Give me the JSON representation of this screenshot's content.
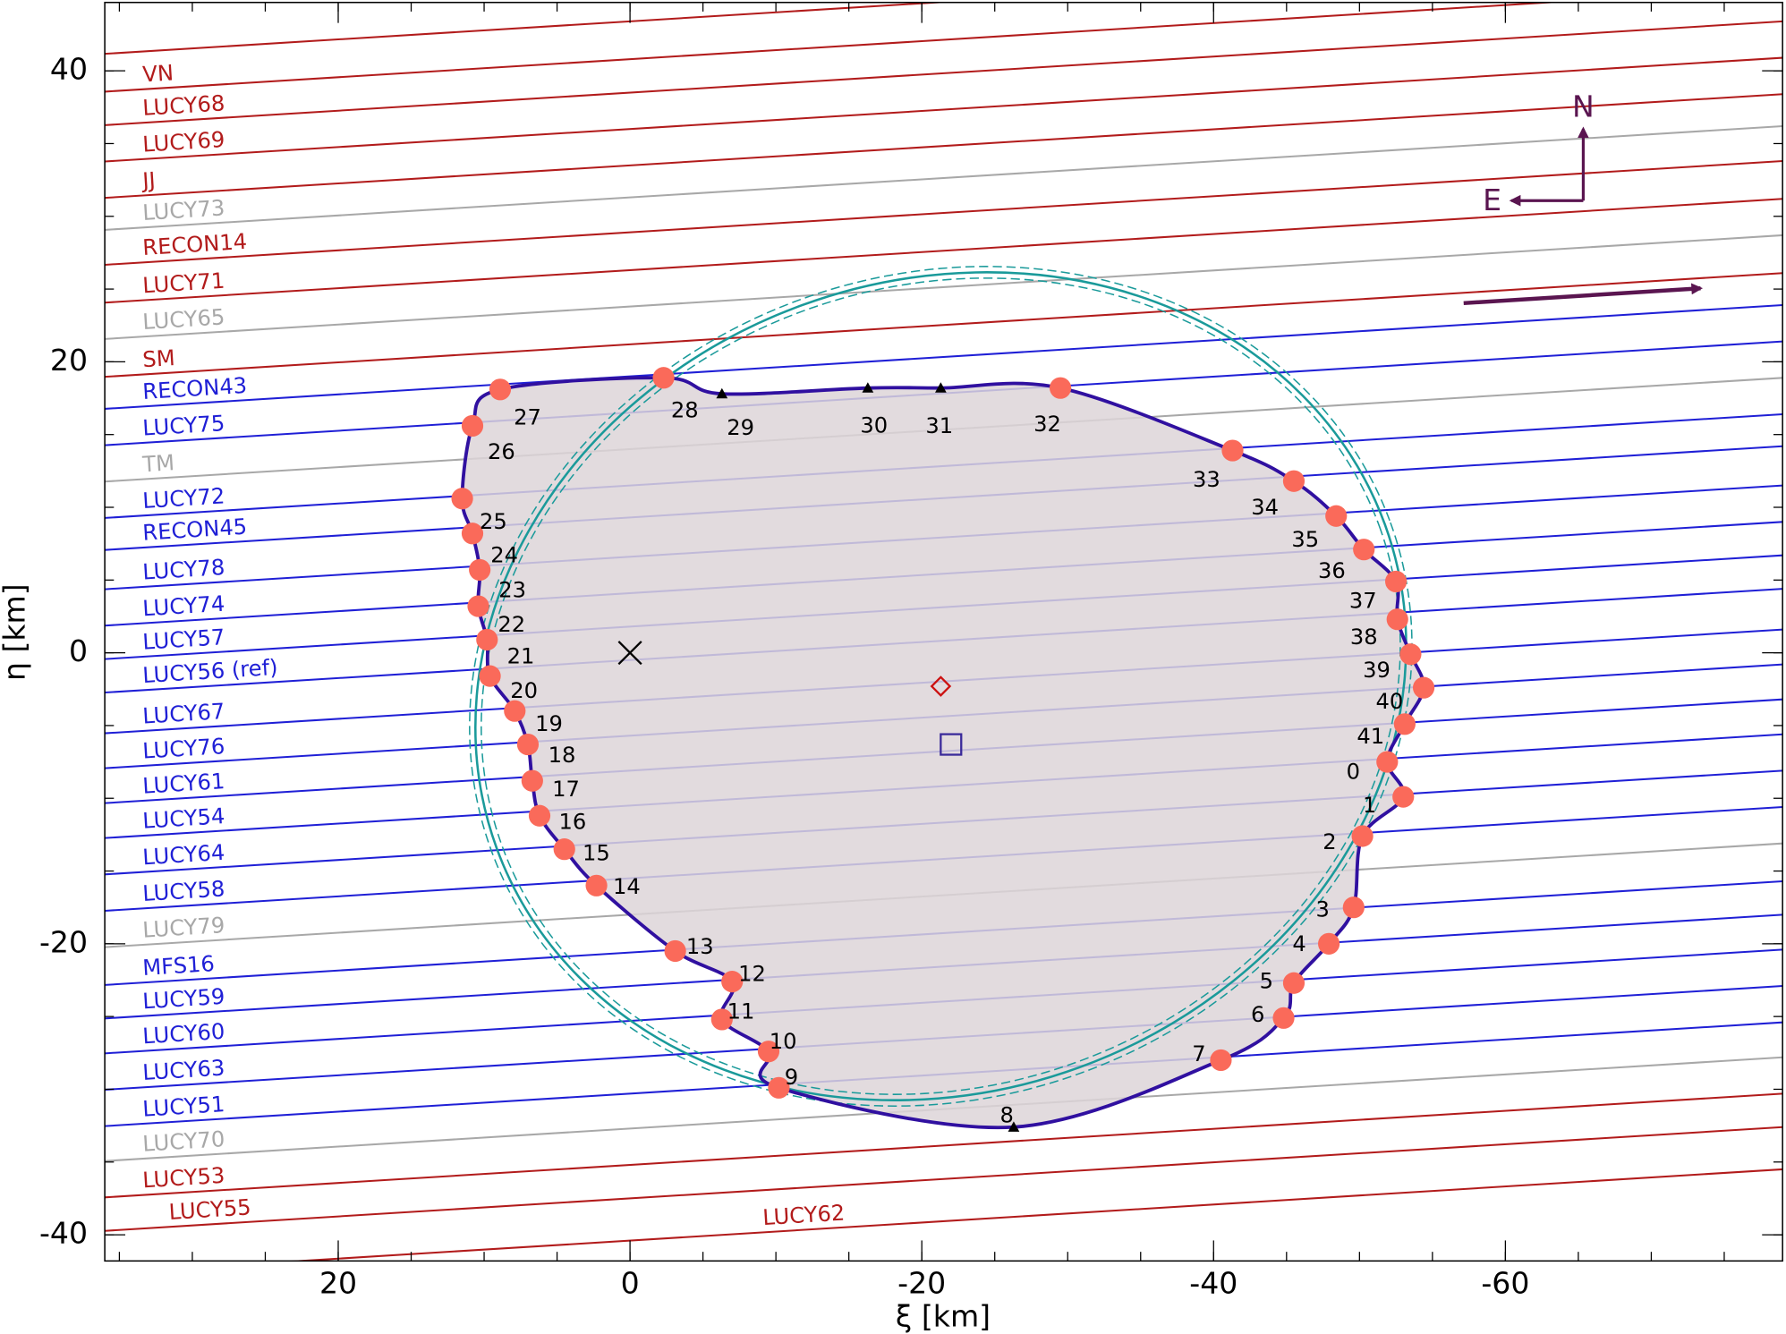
{
  "chart_data": {
    "type": "occultation",
    "xlabel": "ξ [km]",
    "ylabel": "η [km]",
    "xlim": [
      36,
      -79
    ],
    "ylim": [
      -41.8,
      44.7
    ],
    "xticks": [
      20,
      0,
      -20,
      -40,
      -60
    ],
    "yticks": [
      -40,
      -20,
      0,
      20,
      40
    ],
    "minor_step": 5,
    "chord_slope": 0.062,
    "chords": [
      {
        "name": null,
        "color": "#b21b1b",
        "offset": 43.4
      },
      {
        "name": "VN",
        "color": "#b21b1b",
        "offset": 40.8
      },
      {
        "name": "LUCY68",
        "color": "#b21b1b",
        "offset": 38.5
      },
      {
        "name": "LUCY69",
        "color": "#b21b1b",
        "offset": 36.0
      },
      {
        "name": "JJ",
        "color": "#b21b1b",
        "offset": 33.5
      },
      {
        "name": "LUCY73",
        "color": "#a8a8a8",
        "offset": 31.3
      },
      {
        "name": "RECON14",
        "color": "#b21b1b",
        "offset": 28.9
      },
      {
        "name": "LUCY71",
        "color": "#b21b1b",
        "offset": 26.3
      },
      {
        "name": "LUCY65",
        "color": "#a8a8a8",
        "offset": 23.8
      },
      {
        "name": "SM",
        "color": "#b21b1b",
        "offset": 21.2
      },
      {
        "name": "RECON43",
        "color": "#1f1fd6",
        "offset": 19.0
      },
      {
        "name": "LUCY75",
        "color": "#1f1fd6",
        "offset": 16.5
      },
      {
        "name": "TM",
        "color": "#a8a8a8",
        "offset": 14.0
      },
      {
        "name": "LUCY72",
        "color": "#1f1fd6",
        "offset": 11.5
      },
      {
        "name": "RECON45",
        "color": "#1f1fd6",
        "offset": 9.3
      },
      {
        "name": "LUCY78",
        "color": "#1f1fd6",
        "offset": 6.6
      },
      {
        "name": "LUCY74",
        "color": "#1f1fd6",
        "offset": 4.1
      },
      {
        "name": "LUCY57",
        "color": "#1f1fd6",
        "offset": 1.8
      },
      {
        "name": "LUCY56 (ref)",
        "color": "#1f1fd6",
        "offset": -0.5
      },
      {
        "name": "LUCY67",
        "color": "#1f1fd6",
        "offset": -3.3
      },
      {
        "name": "LUCY76",
        "color": "#1f1fd6",
        "offset": -5.7
      },
      {
        "name": "LUCY61",
        "color": "#1f1fd6",
        "offset": -8.1
      },
      {
        "name": "LUCY54",
        "color": "#1f1fd6",
        "offset": -10.5
      },
      {
        "name": "LUCY64",
        "color": "#1f1fd6",
        "offset": -13.0
      },
      {
        "name": "LUCY58",
        "color": "#1f1fd6",
        "offset": -15.5
      },
      {
        "name": "LUCY79",
        "color": "#a8a8a8",
        "offset": -18.0
      },
      {
        "name": "MFS16",
        "color": "#1f1fd6",
        "offset": -20.6
      },
      {
        "name": "LUCY59",
        "color": "#1f1fd6",
        "offset": -22.9
      },
      {
        "name": "LUCY60",
        "color": "#1f1fd6",
        "offset": -25.3
      },
      {
        "name": "LUCY63",
        "color": "#1f1fd6",
        "offset": -27.8
      },
      {
        "name": "LUCY51",
        "color": "#1f1fd6",
        "offset": -30.3
      },
      {
        "name": "LUCY70",
        "color": "#a8a8a8",
        "offset": -32.7
      },
      {
        "name": "LUCY53",
        "color": "#b21b1b",
        "offset": -35.2
      },
      {
        "name": "LUCY55",
        "color": "#b21b1b",
        "offset": -37.5
      },
      {
        "name": "LUCY62",
        "color": "#b21b1b",
        "offset": -40.4
      }
    ],
    "points": [
      {
        "label": "0",
        "xi": -51.9,
        "eta": -7.5,
        "marker": "circle"
      },
      {
        "label": "1",
        "xi": -53.0,
        "eta": -9.9,
        "marker": "circle"
      },
      {
        "label": "2",
        "xi": -50.2,
        "eta": -12.6,
        "marker": "circle"
      },
      {
        "label": "3",
        "xi": -49.6,
        "eta": -17.5,
        "marker": "circle"
      },
      {
        "label": "4",
        "xi": -47.9,
        "eta": -20.0,
        "marker": "circle"
      },
      {
        "label": "5",
        "xi": -45.5,
        "eta": -22.7,
        "marker": "circle"
      },
      {
        "label": "6",
        "xi": -44.8,
        "eta": -25.1,
        "marker": "circle"
      },
      {
        "label": "7",
        "xi": -40.5,
        "eta": -28.0,
        "marker": "circle"
      },
      {
        "label": "8",
        "xi": -26.3,
        "eta": -32.6,
        "marker": "triangle"
      },
      {
        "label": "9",
        "xi": -10.2,
        "eta": -29.9,
        "marker": "circle"
      },
      {
        "label": "10",
        "xi": -9.5,
        "eta": -27.4,
        "marker": "circle"
      },
      {
        "label": "11",
        "xi": -6.3,
        "eta": -25.2,
        "marker": "circle"
      },
      {
        "label": "12",
        "xi": -7.0,
        "eta": -22.6,
        "marker": "circle"
      },
      {
        "label": "13",
        "xi": -3.1,
        "eta": -20.5,
        "marker": "circle"
      },
      {
        "label": "14",
        "xi": 2.3,
        "eta": -16.0,
        "marker": "circle"
      },
      {
        "label": "15",
        "xi": 4.5,
        "eta": -13.5,
        "marker": "circle"
      },
      {
        "label": "16",
        "xi": 6.2,
        "eta": -11.2,
        "marker": "circle"
      },
      {
        "label": "17",
        "xi": 6.7,
        "eta": -8.8,
        "marker": "circle"
      },
      {
        "label": "18",
        "xi": 7.0,
        "eta": -6.3,
        "marker": "circle"
      },
      {
        "label": "19",
        "xi": 7.9,
        "eta": -4.0,
        "marker": "circle"
      },
      {
        "label": "20",
        "xi": 9.6,
        "eta": -1.6,
        "marker": "circle"
      },
      {
        "label": "21",
        "xi": 9.8,
        "eta": 0.9,
        "marker": "circle"
      },
      {
        "label": "22",
        "xi": 10.4,
        "eta": 3.2,
        "marker": "circle"
      },
      {
        "label": "23",
        "xi": 10.3,
        "eta": 5.7,
        "marker": "circle"
      },
      {
        "label": "24",
        "xi": 10.8,
        "eta": 8.2,
        "marker": "circle"
      },
      {
        "label": "25",
        "xi": 11.5,
        "eta": 10.6,
        "marker": "circle"
      },
      {
        "label": "26",
        "xi": 10.8,
        "eta": 15.6,
        "marker": "circle"
      },
      {
        "label": "27",
        "xi": 8.9,
        "eta": 18.1,
        "marker": "circle"
      },
      {
        "label": "28",
        "xi": -2.3,
        "eta": 18.9,
        "marker": "circle"
      },
      {
        "label": "29",
        "xi": -6.3,
        "eta": 17.8,
        "marker": "triangle"
      },
      {
        "label": "30",
        "xi": -16.3,
        "eta": 18.2,
        "marker": "triangle"
      },
      {
        "label": "31",
        "xi": -21.3,
        "eta": 18.2,
        "marker": "triangle"
      },
      {
        "label": "32",
        "xi": -29.5,
        "eta": 18.2,
        "marker": "circle"
      },
      {
        "label": "33",
        "xi": -41.3,
        "eta": 13.9,
        "marker": "circle"
      },
      {
        "label": "34",
        "xi": -45.5,
        "eta": 11.8,
        "marker": "circle"
      },
      {
        "label": "35",
        "xi": -48.4,
        "eta": 9.4,
        "marker": "circle"
      },
      {
        "label": "36",
        "xi": -50.3,
        "eta": 7.1,
        "marker": "circle"
      },
      {
        "label": "37",
        "xi": -52.5,
        "eta": 4.9,
        "marker": "circle"
      },
      {
        "label": "38",
        "xi": -52.6,
        "eta": 2.3,
        "marker": "circle"
      },
      {
        "label": "39",
        "xi": -53.5,
        "eta": -0.1,
        "marker": "circle"
      },
      {
        "label": "40",
        "xi": -54.4,
        "eta": -2.4,
        "marker": "circle"
      },
      {
        "label": "41",
        "xi": -53.1,
        "eta": -4.9,
        "marker": "circle"
      }
    ],
    "ellipse": {
      "xi": -21.3,
      "eta": -2.3,
      "a": 32.4,
      "b": 27.8,
      "angle": 20,
      "error": 0.4
    },
    "centers": [
      {
        "marker": "x",
        "color": "#000000",
        "xi": 0,
        "eta": 0
      },
      {
        "marker": "diamond",
        "color": "#cc1111",
        "xi": -21.3,
        "eta": -2.3
      },
      {
        "marker": "square",
        "color": "#3a2a9a",
        "xi": -22.0,
        "eta": -6.3
      }
    ],
    "compass": {
      "north": "N",
      "east": "E"
    }
  }
}
